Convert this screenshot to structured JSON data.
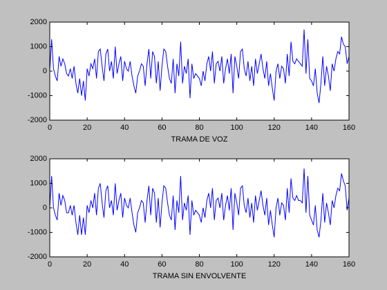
{
  "chart_data": [
    {
      "type": "line",
      "x_label": "TRAMA DE VOZ",
      "color": "#0000ff",
      "xlim": [
        0,
        160
      ],
      "xticks": [
        0,
        20,
        40,
        60,
        80,
        100,
        120,
        140,
        160
      ],
      "ylim": [
        -2000,
        2000
      ],
      "yticks": [
        -2000,
        -1000,
        0,
        1000,
        2000
      ],
      "x": [
        0,
        1,
        2,
        3,
        4,
        5,
        6,
        7,
        8,
        9,
        10,
        11,
        12,
        13,
        14,
        15,
        16,
        17,
        18,
        19,
        20,
        21,
        22,
        23,
        24,
        25,
        26,
        27,
        28,
        29,
        30,
        31,
        32,
        33,
        34,
        35,
        36,
        37,
        38,
        39,
        40,
        41,
        42,
        43,
        44,
        45,
        46,
        47,
        48,
        49,
        50,
        51,
        52,
        53,
        54,
        55,
        56,
        57,
        58,
        59,
        60,
        61,
        62,
        63,
        64,
        65,
        66,
        67,
        68,
        69,
        70,
        71,
        72,
        73,
        74,
        75,
        76,
        77,
        78,
        79,
        80,
        81,
        82,
        83,
        84,
        85,
        86,
        87,
        88,
        89,
        90,
        91,
        92,
        93,
        94,
        95,
        96,
        97,
        98,
        99,
        100,
        101,
        102,
        103,
        104,
        105,
        106,
        107,
        108,
        109,
        110,
        111,
        112,
        113,
        114,
        115,
        116,
        117,
        118,
        119,
        120,
        121,
        122,
        123,
        124,
        125,
        126,
        127,
        128,
        129,
        130,
        131,
        132,
        133,
        134,
        135,
        136,
        137,
        138,
        139,
        140,
        141,
        142,
        143,
        144,
        145,
        146,
        147,
        148,
        149,
        150,
        151,
        152,
        153,
        154,
        155,
        156,
        157,
        158,
        159,
        160
      ],
      "values": [
        0,
        1300,
        100,
        -200,
        -400,
        600,
        200,
        500,
        300,
        -100,
        -200,
        100,
        -300,
        200,
        -500,
        -900,
        -300,
        -1000,
        -400,
        -1200,
        100,
        -200,
        300,
        100,
        500,
        -300,
        800,
        900,
        200,
        -400,
        700,
        900,
        0,
        400,
        -300,
        1000,
        -100,
        300,
        600,
        -400,
        400,
        100,
        0,
        400,
        -200,
        -600,
        -900,
        -200,
        0,
        300,
        200,
        -600,
        300,
        900,
        -300,
        800,
        600,
        -500,
        400,
        -800,
        200,
        900,
        800,
        200,
        -300,
        -500,
        500,
        -900,
        300,
        -200,
        1200,
        -500,
        200,
        -100,
        500,
        -1100,
        300,
        -300,
        -100,
        -200,
        -300,
        -600,
        0,
        -400,
        300,
        600,
        0,
        800,
        -500,
        300,
        400,
        0,
        600,
        -500,
        100,
        500,
        -100,
        700,
        -900,
        600,
        200,
        -300,
        800,
        900,
        100,
        -200,
        400,
        -400,
        200,
        -600,
        500,
        -100,
        300,
        700,
        100,
        -300,
        400,
        -600,
        -100,
        -700,
        -1200,
        0,
        300,
        -300,
        200,
        100,
        -500,
        700,
        -200,
        1200,
        400,
        300,
        500,
        400,
        300,
        200,
        1700,
        -100,
        1300,
        -300,
        -400,
        -600,
        100,
        -900,
        -1300,
        -500,
        600,
        -600,
        200,
        -200,
        -800,
        300,
        0,
        500,
        800,
        700,
        1400,
        1100,
        1000,
        300,
        600
      ]
    },
    {
      "type": "line",
      "x_label": "TRAMA SIN ENVOLVENTE",
      "color": "#0000ff",
      "xlim": [
        0,
        160
      ],
      "xticks": [
        0,
        20,
        40,
        60,
        80,
        100,
        120,
        140,
        160
      ],
      "ylim": [
        -2000,
        2000
      ],
      "yticks": [
        -2000,
        -1000,
        0,
        1000,
        2000
      ],
      "x": [
        0,
        1,
        2,
        3,
        4,
        5,
        6,
        7,
        8,
        9,
        10,
        11,
        12,
        13,
        14,
        15,
        16,
        17,
        18,
        19,
        20,
        21,
        22,
        23,
        24,
        25,
        26,
        27,
        28,
        29,
        30,
        31,
        32,
        33,
        34,
        35,
        36,
        37,
        38,
        39,
        40,
        41,
        42,
        43,
        44,
        45,
        46,
        47,
        48,
        49,
        50,
        51,
        52,
        53,
        54,
        55,
        56,
        57,
        58,
        59,
        60,
        61,
        62,
        63,
        64,
        65,
        66,
        67,
        68,
        69,
        70,
        71,
        72,
        73,
        74,
        75,
        76,
        77,
        78,
        79,
        80,
        81,
        82,
        83,
        84,
        85,
        86,
        87,
        88,
        89,
        90,
        91,
        92,
        93,
        94,
        95,
        96,
        97,
        98,
        99,
        100,
        101,
        102,
        103,
        104,
        105,
        106,
        107,
        108,
        109,
        110,
        111,
        112,
        113,
        114,
        115,
        116,
        117,
        118,
        119,
        120,
        121,
        122,
        123,
        124,
        125,
        126,
        127,
        128,
        129,
        130,
        131,
        132,
        133,
        134,
        135,
        136,
        137,
        138,
        139,
        140,
        141,
        142,
        143,
        144,
        145,
        146,
        147,
        148,
        149,
        150,
        151,
        152,
        153,
        154,
        155,
        156,
        157,
        158,
        159,
        160
      ],
      "values": [
        0,
        1300,
        0,
        -300,
        -500,
        600,
        100,
        500,
        300,
        -200,
        -200,
        100,
        -300,
        100,
        -600,
        -1100,
        -300,
        -1100,
        -400,
        -1100,
        100,
        -200,
        300,
        0,
        600,
        -300,
        800,
        1000,
        200,
        -400,
        700,
        900,
        0,
        300,
        -300,
        1000,
        -100,
        300,
        600,
        -400,
        400,
        100,
        0,
        400,
        -200,
        -700,
        -1000,
        -200,
        0,
        300,
        200,
        -600,
        300,
        900,
        -300,
        800,
        600,
        -600,
        400,
        -800,
        200,
        900,
        800,
        200,
        -300,
        -500,
        500,
        -900,
        300,
        -200,
        1300,
        -500,
        200,
        -100,
        500,
        -1100,
        300,
        -300,
        -100,
        -200,
        -300,
        -600,
        0,
        -400,
        300,
        600,
        0,
        800,
        -500,
        300,
        400,
        0,
        600,
        -500,
        100,
        500,
        -100,
        800,
        -900,
        600,
        200,
        -300,
        800,
        900,
        100,
        -200,
        400,
        -400,
        200,
        -600,
        500,
        -100,
        300,
        700,
        100,
        -300,
        400,
        -700,
        -100,
        -700,
        -1200,
        0,
        400,
        -300,
        200,
        100,
        -500,
        800,
        -200,
        1200,
        400,
        300,
        500,
        300,
        300,
        200,
        1600,
        -200,
        1300,
        -300,
        -500,
        -700,
        100,
        -900,
        -1200,
        -500,
        600,
        -600,
        200,
        -200,
        -700,
        300,
        0,
        500,
        800,
        700,
        1400,
        1100,
        900,
        -100,
        400
      ]
    }
  ]
}
